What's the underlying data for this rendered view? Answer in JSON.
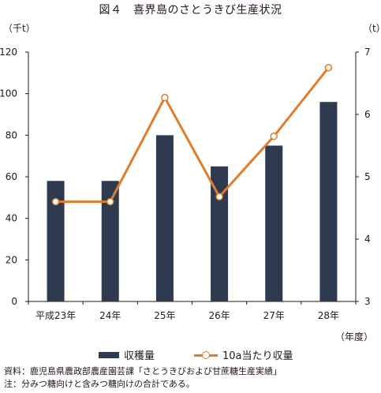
{
  "title": "図４　喜界島のさとうきび生産状況",
  "left_unit": "（千t）",
  "right_unit": "（t）",
  "x_unit": "（年度）",
  "colors": {
    "bar": "#2d3a50",
    "line": "#e07c2c",
    "axis": "#231815"
  },
  "legend": {
    "bar_label": "収穫量",
    "line_label": "10a当たり収量"
  },
  "notes": [
    "資料：鹿児島県農政部農産園芸課「さとうきびおよび甘蔗糖生産実績」",
    "注：分みつ糖向けと含みつ糖向けの合計である。"
  ],
  "chart_data": {
    "type": "bar",
    "categories": [
      "平成23年",
      "24年",
      "25年",
      "26年",
      "27年",
      "28年"
    ],
    "series": [
      {
        "name": "収穫量",
        "type": "bar",
        "axis": "left",
        "values": [
          58,
          58,
          80,
          65,
          75,
          96
        ]
      },
      {
        "name": "10a当たり収量",
        "type": "line",
        "axis": "right",
        "values": [
          4.6,
          4.6,
          6.27,
          4.68,
          5.65,
          6.75
        ]
      }
    ],
    "ylim_left": [
      0,
      120
    ],
    "yticks_left": [
      "0",
      "20",
      "40",
      "60",
      "80",
      "100",
      "120"
    ],
    "ylim_right": [
      3,
      7
    ],
    "yticks_right": [
      "3",
      "4",
      "5",
      "6",
      "7"
    ],
    "grid": false,
    "legend_position": "bottom"
  }
}
